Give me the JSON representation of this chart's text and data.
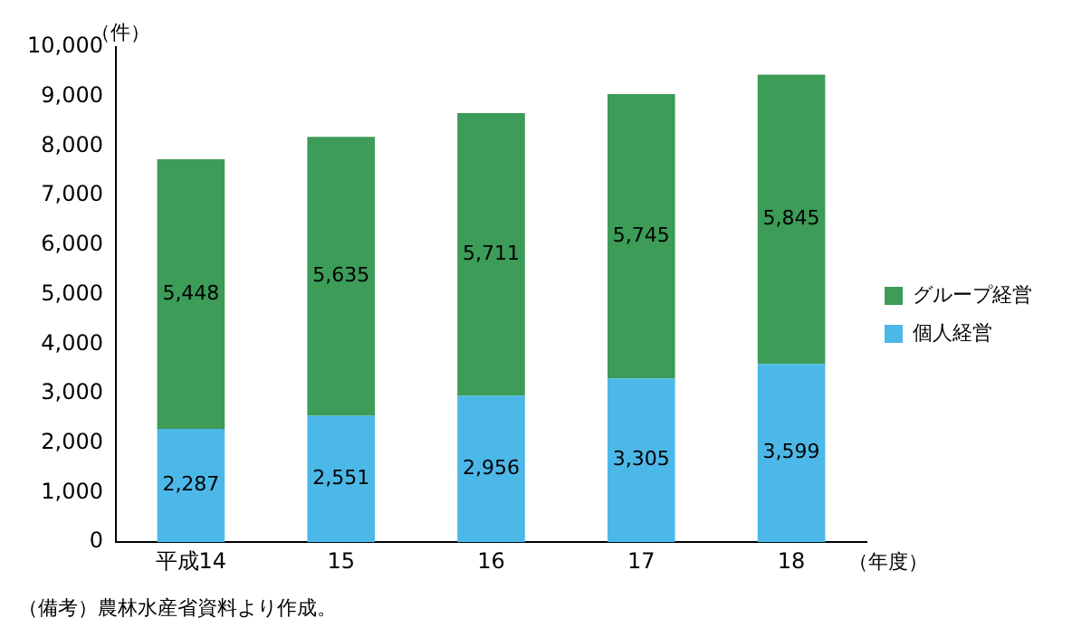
{
  "chart_data": {
    "type": "bar",
    "stacked": true,
    "categories": [
      "平成14",
      "15",
      "16",
      "17",
      "18"
    ],
    "series": [
      {
        "name": "個人経営",
        "color": "#4cb8e8",
        "values": [
          2287,
          2551,
          2956,
          3305,
          3599
        ],
        "value_labels": [
          "2,287",
          "2,551",
          "2,956",
          "3,305",
          "3,599"
        ]
      },
      {
        "name": "グループ経営",
        "color": "#3c9c58",
        "values": [
          5448,
          5635,
          5711,
          5745,
          5845
        ],
        "value_labels": [
          "5,448",
          "5,635",
          "5,711",
          "5,745",
          "5,845"
        ]
      }
    ],
    "ylim": [
      0,
      10000
    ],
    "yticks": [
      0,
      {
        "value": 1000,
        "label": "1,000"
      },
      {
        "value": 2000,
        "label": "2,000"
      },
      {
        "value": 3000,
        "label": "3,000"
      },
      {
        "value": 4000,
        "label": "4,000"
      },
      {
        "value": 5000,
        "label": "5,000"
      },
      {
        "value": 6000,
        "label": "6,000"
      },
      {
        "value": 7000,
        "label": "7,000"
      },
      {
        "value": 8000,
        "label": "8,000"
      },
      {
        "value": 9000,
        "label": "9,000"
      },
      {
        "value": 10000,
        "label": "10,000"
      }
    ],
    "ylabel": "（件）",
    "xlabel": "（年度）",
    "grid": false,
    "legend": "right",
    "annotations": [
      "（備考）農林水産省資料より作成。"
    ]
  }
}
